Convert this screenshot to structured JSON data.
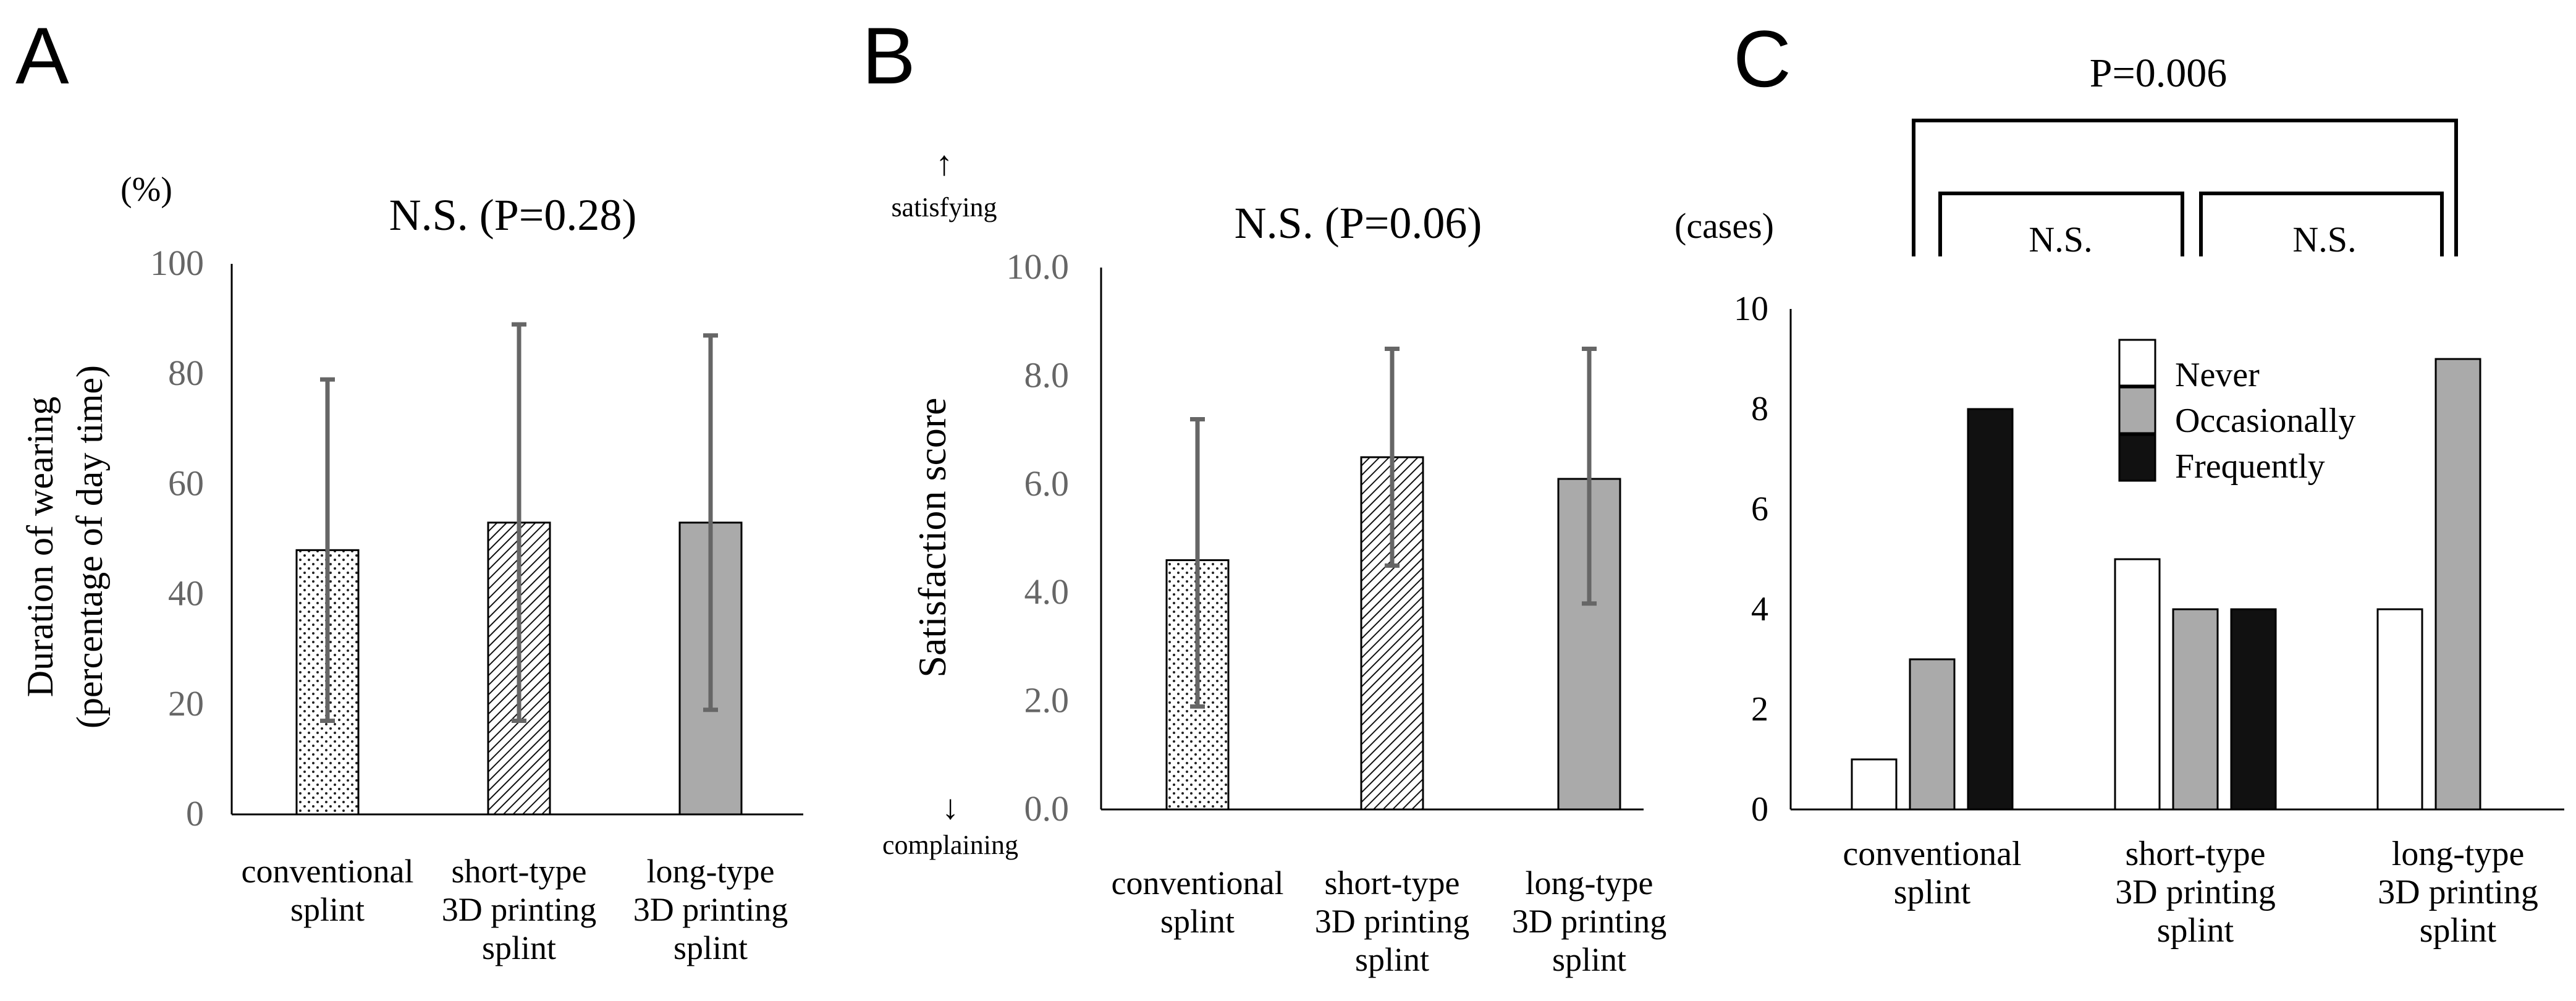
{
  "chart_data": [
    {
      "panel_label": "A",
      "type": "bar",
      "title": "N.S. (P=0.28)",
      "unit": "(%)",
      "ylabel_lines": [
        "Duration of wearing",
        "(percentage of day time)"
      ],
      "ylim": [
        0,
        100
      ],
      "yticks": [
        "0",
        "20",
        "40",
        "60",
        "80",
        "100"
      ],
      "categories": [
        [
          "conventional",
          "splint"
        ],
        [
          "short-type",
          "3D printing",
          "splint"
        ],
        [
          "long-type",
          "3D printing",
          "splint"
        ]
      ],
      "values": [
        48,
        53,
        53
      ],
      "errors": [
        [
          17,
          79
        ],
        [
          17,
          89
        ],
        [
          19,
          87
        ]
      ],
      "fills": [
        "dots",
        "hatch",
        "gray"
      ]
    },
    {
      "panel_label": "B",
      "type": "bar",
      "title": "N.S. (P=0.06)",
      "ylabel": "Satisfaction  score",
      "top_arrow": "↑",
      "top_annotation": "satisfying",
      "bottom_arrow": "↓",
      "bottom_annotation": "complaining",
      "ylim": [
        0,
        10
      ],
      "yticks": [
        "0.0",
        "2.0",
        "4.0",
        "6.0",
        "8.0",
        "10.0"
      ],
      "categories": [
        [
          "conventional",
          "splint"
        ],
        [
          "short-type",
          "3D printing",
          "splint"
        ],
        [
          "long-type",
          "3D printing",
          "splint"
        ]
      ],
      "values": [
        4.6,
        6.5,
        6.1
      ],
      "errors": [
        [
          1.9,
          7.2
        ],
        [
          4.5,
          8.5
        ],
        [
          3.8,
          8.5
        ]
      ],
      "fills": [
        "dots",
        "hatch",
        "gray"
      ]
    },
    {
      "panel_label": "C",
      "type": "bar",
      "unit": "(cases)",
      "ylim": [
        0,
        10
      ],
      "yticks": [
        "0",
        "2",
        "4",
        "6",
        "8",
        "10"
      ],
      "categories": [
        [
          "conventional",
          "splint"
        ],
        [
          "short-type",
          "3D printing",
          "splint"
        ],
        [
          "long-type",
          "3D printing",
          "splint"
        ]
      ],
      "series": [
        {
          "name": "Never",
          "color": "#ffffff",
          "values": [
            1,
            5,
            4
          ]
        },
        {
          "name": "Occasionally",
          "color": "#aaaaaa",
          "values": [
            3,
            4,
            9
          ]
        },
        {
          "name": "Frequently",
          "color": "#111111",
          "values": [
            8,
            4,
            0
          ]
        }
      ],
      "legend_position": "top-right",
      "comparisons": [
        {
          "label": "P=0.006",
          "from": 0,
          "to": 2
        },
        {
          "label": "N.S.",
          "from": 0,
          "to": 1
        },
        {
          "label": "N.S.",
          "from": 1,
          "to": 2
        }
      ]
    }
  ]
}
